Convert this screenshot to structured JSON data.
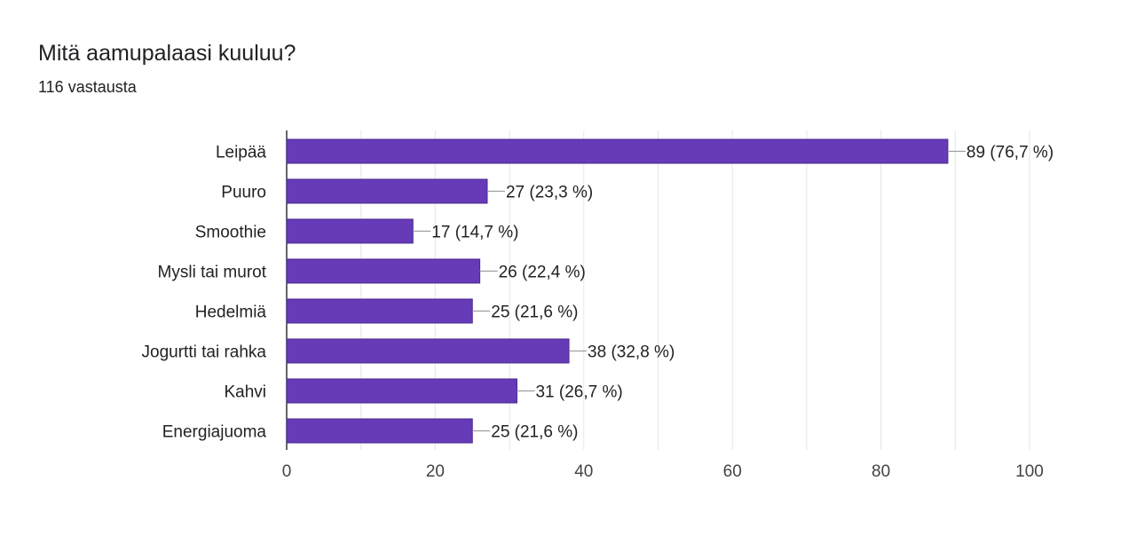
{
  "header": {
    "title": "Mitä aamupalaasi kuuluu?",
    "response_count": "116 vastausta"
  },
  "colors": {
    "bar": "#673ab7",
    "bar_stroke": "#4a2a8c",
    "grid": "#e6e6e6",
    "axis": "#333333",
    "leader": "#9e9e9e"
  },
  "chart_data": {
    "type": "bar",
    "orientation": "horizontal",
    "title": "Mitä aamupalaasi kuuluu?",
    "categories": [
      "Leipää",
      "Puuro",
      "Smoothie",
      "Mysli tai murot",
      "Hedelmiä",
      "Jogurtti tai rahka",
      "Kahvi",
      "Energiajuoma"
    ],
    "values": [
      89,
      27,
      17,
      26,
      25,
      38,
      31,
      25
    ],
    "data_labels": [
      "89 (76,7 %)",
      "27 (23,3 %)",
      "17 (14,7 %)",
      "26 (22,4 %)",
      "25 (21,6 %)",
      "38 (32,8 %)",
      "31 (26,7 %)",
      "25 (21,6 %)"
    ],
    "xlim": [
      0,
      100
    ],
    "xticks": [
      0,
      20,
      40,
      60,
      80,
      100
    ],
    "tick_labels": [
      "0",
      "20",
      "40",
      "60",
      "80",
      "100"
    ],
    "xlabel": "",
    "ylabel": "",
    "grid": true
  }
}
